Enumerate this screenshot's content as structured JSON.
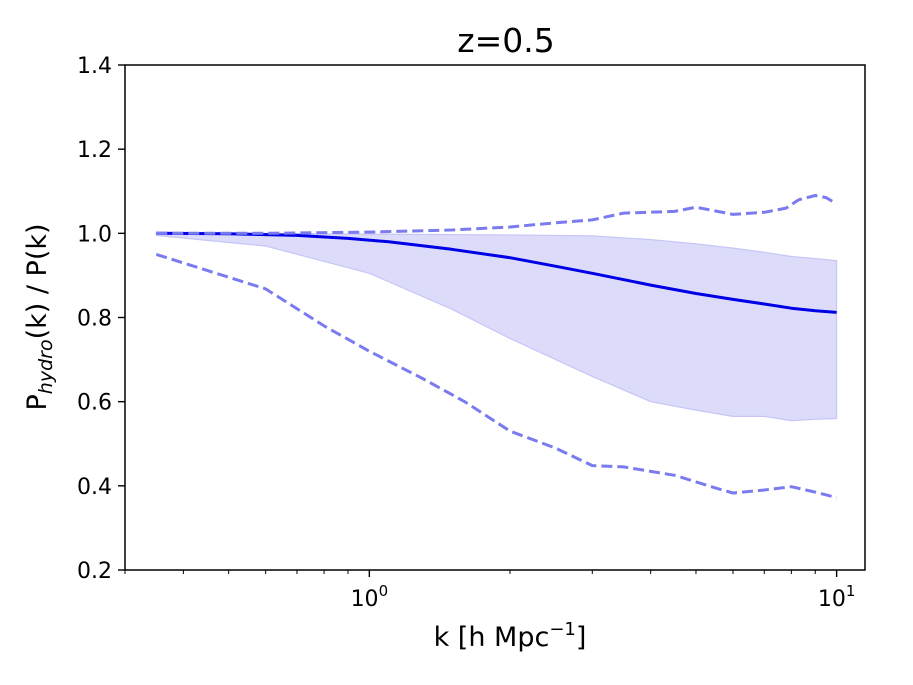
{
  "chart_data": {
    "type": "line",
    "title": "z=0.5",
    "xlabel_base": "k [h Mpc",
    "xlabel_sup": "−1",
    "xlabel_end": "]",
    "ylabel_base": "P",
    "ylabel_sub": "hydro",
    "ylabel_end": "(k) / P(k)",
    "xscale": "log",
    "xlim": [
      0.3,
      11.5
    ],
    "ylim": [
      0.2,
      1.4
    ],
    "yticks": [
      0.2,
      0.4,
      0.6,
      0.8,
      1.0,
      1.2,
      1.4
    ],
    "ytick_labels": [
      "0.2",
      "0.4",
      "0.6",
      "0.8",
      "1.0",
      "1.2",
      "1.4"
    ],
    "xticks": [
      {
        "value": 1,
        "base": "10",
        "exp": "0"
      },
      {
        "value": 10,
        "base": "10",
        "exp": "1"
      }
    ],
    "colors": {
      "main": "#0000e6",
      "dashed": "#7b7bf0",
      "fill": "#dcdcfa",
      "fill_edge": "#c6c6f6"
    },
    "series": [
      {
        "name": "median",
        "style": "solid",
        "x": [
          0.35,
          0.5,
          0.7,
          0.9,
          1.1,
          1.5,
          2.0,
          2.5,
          3.0,
          4.0,
          5.0,
          6.0,
          7.0,
          8.0,
          9.0,
          10.0
        ],
        "y": [
          1.0,
          0.999,
          0.995,
          0.988,
          0.98,
          0.962,
          0.942,
          0.922,
          0.905,
          0.877,
          0.857,
          0.843,
          0.832,
          0.822,
          0.816,
          0.812
        ]
      },
      {
        "name": "upper-dashed",
        "style": "dashed",
        "x": [
          0.35,
          0.6,
          1.0,
          1.5,
          2.0,
          2.5,
          3.0,
          3.5,
          4.5,
          5.0,
          6.0,
          7.0,
          7.8,
          8.3,
          9.0,
          9.5,
          10.0
        ],
        "y": [
          1.0,
          1.0,
          1.003,
          1.008,
          1.015,
          1.025,
          1.032,
          1.048,
          1.052,
          1.062,
          1.045,
          1.05,
          1.06,
          1.08,
          1.09,
          1.085,
          1.07
        ]
      },
      {
        "name": "lower-dashed",
        "style": "dashed",
        "x": [
          0.35,
          0.6,
          0.8,
          1.0,
          1.3,
          1.6,
          2.0,
          2.5,
          3.0,
          3.5,
          4.5,
          5.5,
          6.0,
          7.0,
          8.0,
          9.0,
          10.0
        ],
        "y": [
          0.95,
          0.868,
          0.78,
          0.72,
          0.655,
          0.6,
          0.53,
          0.49,
          0.448,
          0.445,
          0.425,
          0.395,
          0.383,
          0.39,
          0.398,
          0.385,
          0.372
        ]
      }
    ],
    "band": {
      "name": "shaded-range",
      "x": [
        0.35,
        0.6,
        1.0,
        1.5,
        2.0,
        3.0,
        4.0,
        5.0,
        6.0,
        7.0,
        8.0,
        9.0,
        10.0
      ],
      "upper": [
        1.0,
        1.0,
        0.998,
        0.997,
        0.996,
        0.994,
        0.985,
        0.975,
        0.965,
        0.955,
        0.945,
        0.94,
        0.935
      ],
      "lower": [
        0.995,
        0.97,
        0.905,
        0.82,
        0.75,
        0.66,
        0.6,
        0.58,
        0.565,
        0.565,
        0.555,
        0.558,
        0.56
      ]
    }
  }
}
